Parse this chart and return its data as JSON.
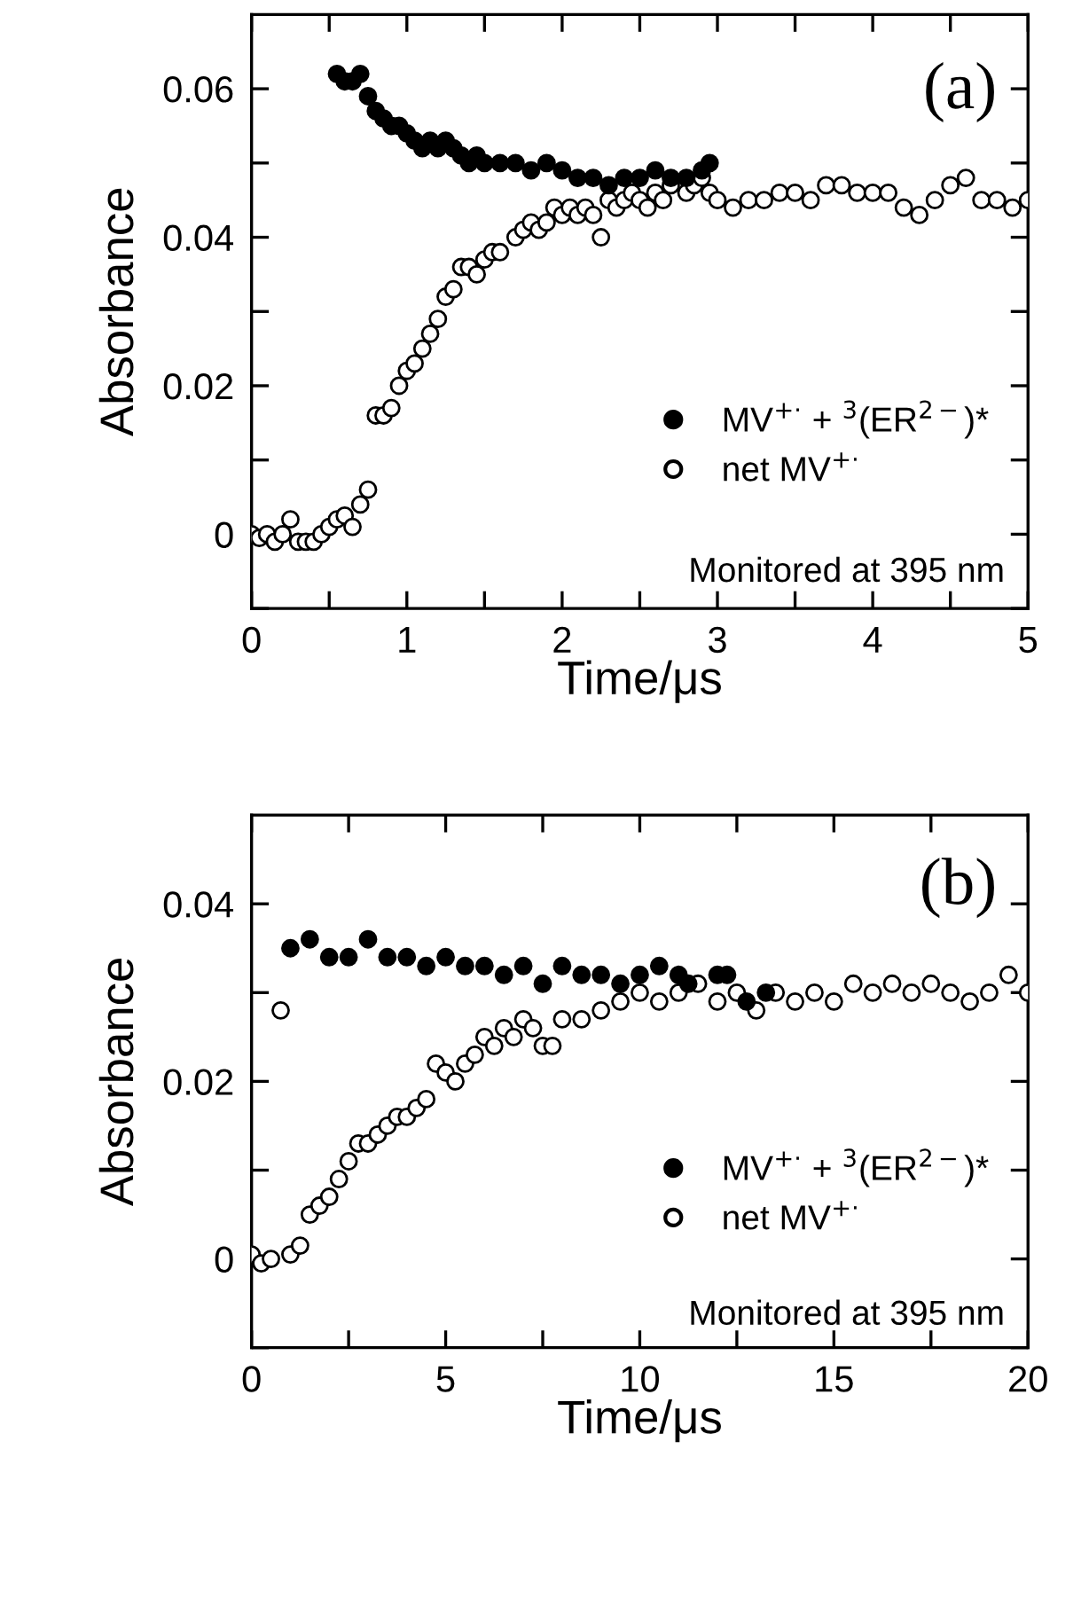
{
  "chart_data": [
    {
      "type": "scatter",
      "xlabel": "Time/μs",
      "ylabel": "Absorbance",
      "marker": "circle",
      "legend": "bottom right",
      "grid": false,
      "xlim": [
        0,
        5
      ],
      "ylim": [
        -0.01,
        0.07
      ],
      "xticks": [
        0,
        {
          "value": 0.5,
          "label": null
        },
        1,
        {
          "value": 1.5,
          "label": null
        },
        2,
        {
          "value": 2.5,
          "label": null
        },
        3,
        {
          "value": 3.5,
          "label": null
        },
        4,
        {
          "value": 4.5,
          "label": null
        },
        5
      ],
      "yticks": [
        {
          "value": -0.01,
          "label": null
        },
        0,
        {
          "value": 0.01,
          "label": null
        },
        0.02,
        {
          "value": 0.03,
          "label": null
        },
        0.04,
        {
          "value": 0.05,
          "label": null
        },
        0.06
      ],
      "annotations": [
        "(a)",
        "Monitored at 395 nm"
      ],
      "series": [
        {
          "name": "MV$^{+·}$ + $^{3}$(ER$^{2−}$)*",
          "color": "#000000",
          "x": [
            0.55,
            0.6,
            0.65,
            0.7,
            0.75,
            0.8,
            0.85,
            0.9,
            0.95,
            1.0,
            1.05,
            1.1,
            1.15,
            1.2,
            1.25,
            1.3,
            1.35,
            1.4,
            1.45,
            1.5,
            1.6,
            1.7,
            1.8,
            1.9,
            2.0,
            2.1,
            2.2,
            2.3,
            2.4,
            2.5,
            2.6,
            2.7,
            2.8,
            2.9,
            2.95
          ],
          "values": [
            0.062,
            0.061,
            0.061,
            0.062,
            0.059,
            0.057,
            0.056,
            0.055,
            0.055,
            0.054,
            0.053,
            0.052,
            0.053,
            0.052,
            0.053,
            0.052,
            0.051,
            0.05,
            0.051,
            0.05,
            0.05,
            0.05,
            0.049,
            0.05,
            0.049,
            0.048,
            0.048,
            0.047,
            0.048,
            0.048,
            0.049,
            0.048,
            0.048,
            0.049,
            0.05
          ]
        },
        {
          "name": "net MV$^{+·}$",
          "color": "#ffffff",
          "x": [
            0.0,
            0.05,
            0.1,
            0.15,
            0.2,
            0.25,
            0.3,
            0.35,
            0.4,
            0.45,
            0.5,
            0.55,
            0.6,
            0.65,
            0.7,
            0.75,
            0.8,
            0.85,
            0.9,
            0.95,
            1.0,
            1.05,
            1.1,
            1.15,
            1.2,
            1.25,
            1.3,
            1.35,
            1.4,
            1.45,
            1.5,
            1.55,
            1.6,
            1.7,
            1.75,
            1.8,
            1.85,
            1.9,
            1.95,
            2.0,
            2.05,
            2.1,
            2.15,
            2.2,
            2.25,
            2.3,
            2.35,
            2.4,
            2.45,
            2.5,
            2.55,
            2.6,
            2.65,
            2.7,
            2.8,
            2.85,
            2.9,
            2.95,
            3.0,
            3.1,
            3.2,
            3.3,
            3.4,
            3.5,
            3.6,
            3.7,
            3.8,
            3.9,
            4.0,
            4.1,
            4.2,
            4.3,
            4.4,
            4.5,
            4.6,
            4.7,
            4.8,
            4.9,
            5.0
          ],
          "values": [
            0.0,
            -0.0005,
            0.0,
            -0.001,
            0.0,
            0.002,
            -0.001,
            -0.001,
            -0.001,
            0.0,
            0.001,
            0.002,
            0.0025,
            0.001,
            0.004,
            0.006,
            0.016,
            0.016,
            0.017,
            0.02,
            0.022,
            0.023,
            0.025,
            0.027,
            0.029,
            0.032,
            0.033,
            0.036,
            0.036,
            0.035,
            0.037,
            0.038,
            0.038,
            0.04,
            0.041,
            0.042,
            0.041,
            0.042,
            0.044,
            0.043,
            0.044,
            0.043,
            0.044,
            0.043,
            0.04,
            0.045,
            0.044,
            0.045,
            0.046,
            0.045,
            0.044,
            0.046,
            0.045,
            0.047,
            0.046,
            0.047,
            0.048,
            0.046,
            0.045,
            0.044,
            0.045,
            0.045,
            0.046,
            0.046,
            0.045,
            0.047,
            0.047,
            0.046,
            0.046,
            0.046,
            0.044,
            0.043,
            0.045,
            0.047,
            0.048,
            0.045,
            0.045,
            0.044,
            0.045
          ]
        }
      ]
    },
    {
      "type": "scatter",
      "xlabel": "Time/μs",
      "ylabel": "Absorbance",
      "marker": "circle",
      "legend": "bottom right",
      "grid": false,
      "xlim": [
        0,
        20
      ],
      "ylim": [
        -0.01,
        0.05
      ],
      "xticks": [
        0,
        {
          "value": 2.5,
          "label": null
        },
        5,
        {
          "value": 7.5,
          "label": null
        },
        10,
        {
          "value": 12.5,
          "label": null
        },
        15,
        {
          "value": 17.5,
          "label": null
        },
        20
      ],
      "yticks": [
        {
          "value": -0.01,
          "label": null
        },
        0,
        {
          "value": 0.01,
          "label": null
        },
        0.02,
        {
          "value": 0.03,
          "label": null
        },
        0.04
      ],
      "annotations": [
        "(b)",
        "Monitored at 395 nm"
      ],
      "series": [
        {
          "name": "MV$^{+·}$ + $^{3}$(ER$^{2−}$)*",
          "color": "#000000",
          "x": [
            1.0,
            1.5,
            2.0,
            2.5,
            3.0,
            3.5,
            4.0,
            4.5,
            5.0,
            5.5,
            6.0,
            6.5,
            7.0,
            7.5,
            8.0,
            8.5,
            9.0,
            9.5,
            10.0,
            10.5,
            11.0,
            11.25,
            12.0,
            12.25,
            12.75,
            13.25
          ],
          "values": [
            0.035,
            0.036,
            0.034,
            0.034,
            0.036,
            0.034,
            0.034,
            0.033,
            0.034,
            0.033,
            0.033,
            0.032,
            0.033,
            0.031,
            0.033,
            0.032,
            0.032,
            0.031,
            0.032,
            0.033,
            0.032,
            0.031,
            0.032,
            0.032,
            0.029,
            0.03
          ]
        },
        {
          "name": "net MV$^{+·}$",
          "color": "#ffffff",
          "x": [
            0.0,
            0.25,
            0.5,
            0.75,
            1.0,
            1.25,
            1.5,
            1.75,
            2.0,
            2.25,
            2.5,
            2.75,
            3.0,
            3.25,
            3.5,
            3.75,
            4.0,
            4.25,
            4.5,
            4.75,
            5.0,
            5.25,
            5.5,
            5.75,
            6.0,
            6.25,
            6.5,
            6.75,
            7.0,
            7.25,
            7.5,
            7.75,
            8.0,
            8.5,
            9.0,
            9.5,
            10.0,
            10.5,
            11.0,
            11.5,
            12.0,
            12.5,
            13.0,
            13.5,
            14.0,
            14.5,
            15.0,
            15.5,
            16.0,
            16.5,
            17.0,
            17.5,
            18.0,
            18.5,
            19.0,
            19.5,
            20.0
          ],
          "values": [
            0.0005,
            -0.0005,
            0.0,
            0.028,
            0.0005,
            0.0015,
            0.005,
            0.006,
            0.007,
            0.009,
            0.011,
            0.013,
            0.013,
            0.014,
            0.015,
            0.016,
            0.016,
            0.017,
            0.018,
            0.022,
            0.021,
            0.02,
            0.022,
            0.023,
            0.025,
            0.024,
            0.026,
            0.025,
            0.027,
            0.026,
            0.024,
            0.024,
            0.027,
            0.027,
            0.028,
            0.029,
            0.03,
            0.029,
            0.03,
            0.031,
            0.029,
            0.03,
            0.028,
            0.03,
            0.029,
            0.03,
            0.029,
            0.031,
            0.03,
            0.031,
            0.03,
            0.031,
            0.03,
            0.029,
            0.03,
            0.032,
            0.03
          ]
        }
      ]
    }
  ]
}
